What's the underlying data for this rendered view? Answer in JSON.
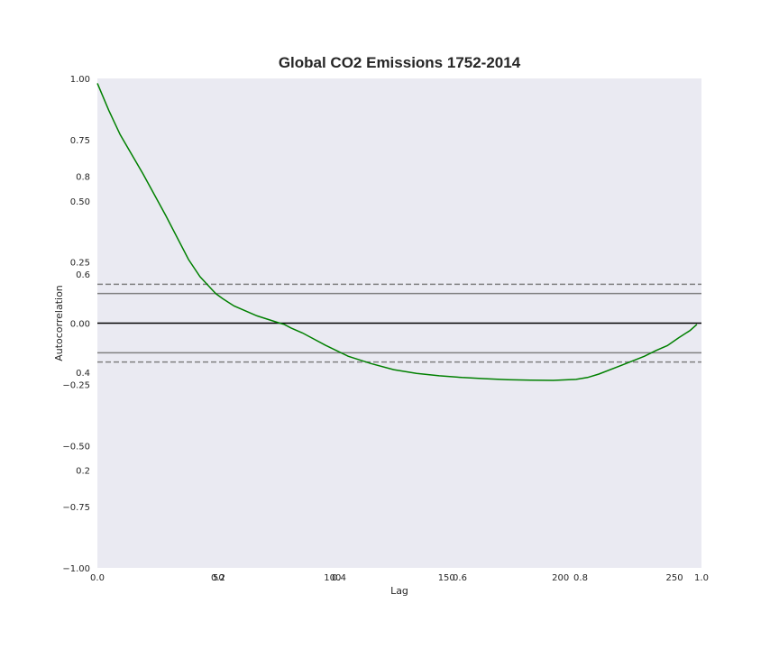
{
  "chart_data": {
    "type": "line",
    "title": "Global CO2 Emissions 1752-2014",
    "xlabel": "Lag",
    "ylabel": "Autocorrelation",
    "xlim": [
      0,
      265
    ],
    "ylim": [
      -1.0,
      1.0
    ],
    "grid": false,
    "x_ticks": [
      {
        "value": 0,
        "label": "0.0"
      },
      {
        "value": 50,
        "label": "50"
      },
      {
        "value": 100,
        "label": "100"
      },
      {
        "value": 150,
        "label": "150"
      },
      {
        "value": 200,
        "label": "200"
      },
      {
        "value": 250,
        "label": "250"
      }
    ],
    "y_ticks": [
      {
        "value": 1.0,
        "label": "1.00"
      },
      {
        "value": 0.75,
        "label": "0.75"
      },
      {
        "value": 0.5,
        "label": "0.50"
      },
      {
        "value": 0.25,
        "label": "0.25"
      },
      {
        "value": 0.0,
        "label": "0.00"
      },
      {
        "value": -0.25,
        "label": "−0.25"
      },
      {
        "value": -0.5,
        "label": "−0.50"
      },
      {
        "value": -0.75,
        "label": "−0.75"
      },
      {
        "value": -1.0,
        "label": "−1.00"
      }
    ],
    "overlay_x_ticks": [
      "0.0",
      "0.2",
      "0.4",
      "0.6",
      "0.8",
      "1.0"
    ],
    "overlay_y_ticks": [
      "0.0",
      "0.2",
      "0.4",
      "0.6",
      "0.8",
      "1.0"
    ],
    "confidence_bands": {
      "z95": 0.121,
      "z99": 0.159
    },
    "colors": {
      "series": "#008000",
      "zero_line": "#000000",
      "band95": "#808080",
      "band99": "#808080",
      "plot_background": "#eaeaf2"
    },
    "series": [
      {
        "x": [
          0,
          5,
          10,
          20,
          30,
          40,
          45,
          50,
          52,
          55,
          60,
          70,
          80,
          82,
          85,
          90,
          100,
          110,
          120,
          130,
          140,
          150,
          160,
          170,
          180,
          190,
          200,
          210,
          215,
          220,
          230,
          240,
          245,
          250,
          255,
          260,
          263
        ],
        "y": [
          0.98,
          0.87,
          0.77,
          0.61,
          0.44,
          0.26,
          0.19,
          0.14,
          0.12,
          0.1,
          0.07,
          0.03,
          0.0,
          -0.005,
          -0.02,
          -0.04,
          -0.09,
          -0.135,
          -0.165,
          -0.19,
          -0.205,
          -0.215,
          -0.222,
          -0.227,
          -0.231,
          -0.233,
          -0.234,
          -0.23,
          -0.222,
          -0.208,
          -0.172,
          -0.135,
          -0.112,
          -0.092,
          -0.06,
          -0.03,
          -0.005
        ]
      }
    ]
  }
}
